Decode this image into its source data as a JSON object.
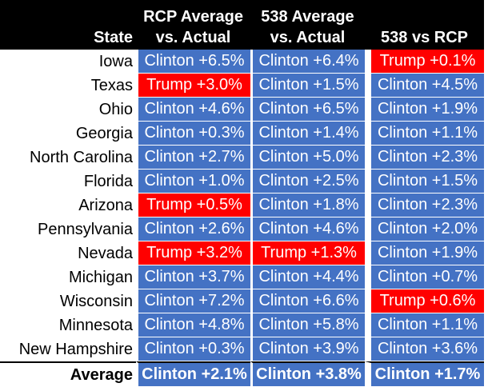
{
  "headers": {
    "state": "State",
    "rcp": [
      "RCP Average",
      "vs. Actual"
    ],
    "fte": [
      "538 Average",
      "vs. Actual"
    ],
    "diff": [
      "",
      "538 vs RCP"
    ]
  },
  "colors": {
    "clinton": "#4472c4",
    "trump": "#ff0000",
    "header_bg": "#000000"
  },
  "rows": [
    {
      "state": "Iowa",
      "rcp": "Clinton +6.5%",
      "fte": "Clinton +6.4%",
      "diff": "Trump +0.1%"
    },
    {
      "state": "Texas",
      "rcp": "Trump +3.0%",
      "fte": "Clinton +1.5%",
      "diff": "Clinton +4.5%"
    },
    {
      "state": "Ohio",
      "rcp": "Clinton +4.6%",
      "fte": "Clinton +6.5%",
      "diff": "Clinton +1.9%"
    },
    {
      "state": "Georgia",
      "rcp": "Clinton +0.3%",
      "fte": "Clinton +1.4%",
      "diff": "Clinton +1.1%"
    },
    {
      "state": "North Carolina",
      "rcp": "Clinton +2.7%",
      "fte": "Clinton +5.0%",
      "diff": "Clinton +2.3%"
    },
    {
      "state": "Florida",
      "rcp": "Clinton +1.0%",
      "fte": "Clinton +2.5%",
      "diff": "Clinton +1.5%"
    },
    {
      "state": "Arizona",
      "rcp": "Trump +0.5%",
      "fte": "Clinton +1.8%",
      "diff": "Clinton +2.3%"
    },
    {
      "state": "Pennsylvania",
      "rcp": "Clinton +2.6%",
      "fte": "Clinton +4.6%",
      "diff": "Clinton +2.0%"
    },
    {
      "state": "Nevada",
      "rcp": "Trump +3.2%",
      "fte": "Trump +1.3%",
      "diff": "Clinton +1.9%"
    },
    {
      "state": "Michigan",
      "rcp": "Clinton +3.7%",
      "fte": "Clinton +4.4%",
      "diff": "Clinton +0.7%"
    },
    {
      "state": "Wisconsin",
      "rcp": "Clinton +7.2%",
      "fte": "Clinton +6.6%",
      "diff": "Trump +0.6%"
    },
    {
      "state": "Minnesota",
      "rcp": "Clinton +4.8%",
      "fte": "Clinton +5.8%",
      "diff": "Clinton +1.1%"
    },
    {
      "state": "New Hampshire",
      "rcp": "Clinton +0.3%",
      "fte": "Clinton +3.9%",
      "diff": "Clinton +3.6%"
    }
  ],
  "average": {
    "state": "Average",
    "rcp": "Clinton +2.1%",
    "fte": "Clinton +3.8%",
    "diff": "Clinton +1.7%"
  }
}
